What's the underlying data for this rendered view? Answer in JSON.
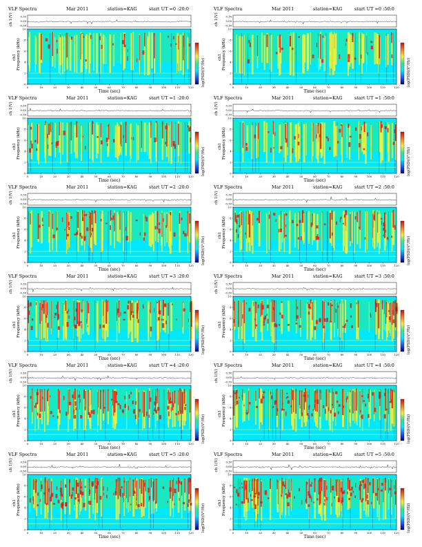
{
  "page": {
    "title": "VLF Spectra"
  },
  "panel_template": {
    "heading_title": "VLF Spectra",
    "date": "Mar 2011",
    "station": "station=KAG",
    "start_prefix": "start  UT =",
    "waveform_ylabel": "ch 1(V)",
    "waveform_ticks": [
      "0.30",
      "0.00",
      "-0.30"
    ],
    "freq_ylabel": "Frequency  (kHz)",
    "freq_ch": "ch1",
    "freq_ticks": [
      "0",
      "2",
      "4",
      "6",
      "8",
      "10"
    ],
    "time_xlabel": "Time  (sec)",
    "time_ticks": [
      "0",
      "10",
      "20",
      "30",
      "40",
      "50",
      "60",
      "70",
      "80",
      "90",
      "100",
      "110",
      "120"
    ],
    "colorbar_label": "log(PSD)(V²/Hz)",
    "colorbar_ticks": [
      "-",
      "-"
    ]
  },
  "chart_data": [
    {
      "type": "heatmap",
      "start_ut": "0 :20:0",
      "xlim": [
        0,
        120
      ],
      "ylim": [
        0,
        10
      ],
      "xlabel": "Time  (sec)",
      "ylabel": "Frequency  (kHz)",
      "colorbar": "log(PSD)(V²/Hz)"
    },
    {
      "type": "heatmap",
      "start_ut": "0 :50:0",
      "xlim": [
        0,
        120
      ],
      "ylim": [
        0,
        10
      ],
      "xlabel": "Time  (sec)",
      "ylabel": "Frequency  (kHz)",
      "colorbar": "log(PSD)(V²/Hz)"
    },
    {
      "type": "heatmap",
      "start_ut": "1 :20:0",
      "xlim": [
        0,
        120
      ],
      "ylim": [
        0,
        10
      ],
      "xlabel": "Time  (sec)",
      "ylabel": "Frequency  (kHz)",
      "colorbar": "log(PSD)(V²/Hz)"
    },
    {
      "type": "heatmap",
      "start_ut": "1 :50:0",
      "xlim": [
        0,
        120
      ],
      "ylim": [
        0,
        10
      ],
      "xlabel": "Time  (sec)",
      "ylabel": "Frequency  (kHz)",
      "colorbar": "log(PSD)(V²/Hz)"
    },
    {
      "type": "heatmap",
      "start_ut": "2 :20:0",
      "xlim": [
        0,
        120
      ],
      "ylim": [
        0,
        10
      ],
      "xlabel": "Time  (sec)",
      "ylabel": "Frequency  (kHz)",
      "colorbar": "log(PSD)(V²/Hz)"
    },
    {
      "type": "heatmap",
      "start_ut": "2 :50:0",
      "xlim": [
        0,
        120
      ],
      "ylim": [
        0,
        10
      ],
      "xlabel": "Time  (sec)",
      "ylabel": "Frequency  (kHz)",
      "colorbar": "log(PSD)(V²/Hz)"
    },
    {
      "type": "heatmap",
      "start_ut": "3 :20:0",
      "xlim": [
        0,
        120
      ],
      "ylim": [
        0,
        10
      ],
      "xlabel": "Time  (sec)",
      "ylabel": "Frequency  (kHz)",
      "colorbar": "log(PSD)(V²/Hz)"
    },
    {
      "type": "heatmap",
      "start_ut": "3 :50:0",
      "xlim": [
        0,
        120
      ],
      "ylim": [
        0,
        10
      ],
      "xlabel": "Time  (sec)",
      "ylabel": "Frequency  (kHz)",
      "colorbar": "log(PSD)(V²/Hz)"
    },
    {
      "type": "heatmap",
      "start_ut": "4 :20:0",
      "xlim": [
        0,
        120
      ],
      "ylim": [
        0,
        10
      ],
      "xlabel": "Time  (sec)",
      "ylabel": "Frequency  (kHz)",
      "colorbar": "log(PSD)(V²/Hz)"
    },
    {
      "type": "heatmap",
      "start_ut": "4 :50:0",
      "xlim": [
        0,
        120
      ],
      "ylim": [
        0,
        10
      ],
      "xlabel": "Time  (sec)",
      "ylabel": "Frequency  (kHz)",
      "colorbar": "log(PSD)(V²/Hz)"
    },
    {
      "type": "heatmap",
      "start_ut": "5 :20:0",
      "xlim": [
        0,
        120
      ],
      "ylim": [
        0,
        10
      ],
      "xlabel": "Time  (sec)",
      "ylabel": "Frequency  (kHz)",
      "colorbar": "log(PSD)(V²/Hz)"
    },
    {
      "type": "heatmap",
      "start_ut": "5 :50:0",
      "xlim": [
        0,
        120
      ],
      "ylim": [
        0,
        10
      ],
      "xlabel": "Time  (sec)",
      "ylabel": "Frequency  (kHz)",
      "colorbar": "log(PSD)(V²/Hz)"
    }
  ],
  "colors": {
    "background": "#00e8ff",
    "green": "#30e890",
    "yellow": "#f0f040",
    "red": "#e01818",
    "waveform": "#000000",
    "colorbar_stops": [
      "#d01010",
      "#f08020",
      "#f0f040",
      "#30e890",
      "#00e8ff",
      "#2060ff",
      "#000080"
    ]
  }
}
